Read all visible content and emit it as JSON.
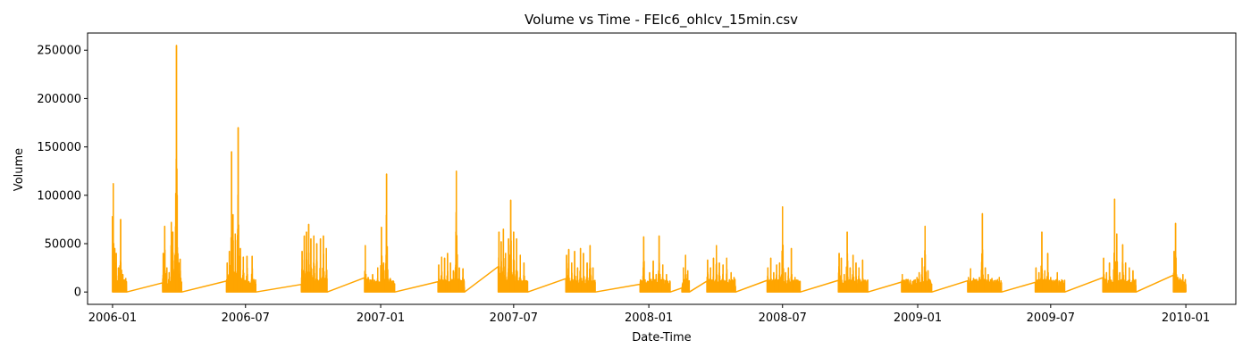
{
  "chart_data": {
    "type": "line",
    "title": "Volume vs Time - FEIc6_ohlcv_15min.csv",
    "xlabel": "Date-Time",
    "ylabel": "Volume",
    "series_color": "#FFA500",
    "grid": false,
    "legend": "none",
    "xlim": [
      "2005-11-28",
      "2010-03-10"
    ],
    "ylim": [
      -12750,
      267750
    ],
    "x_ticks": [
      "2006-01",
      "2006-07",
      "2007-01",
      "2007-07",
      "2008-01",
      "2008-07",
      "2009-01",
      "2009-07",
      "2010-01"
    ],
    "y_ticks": [
      0,
      50000,
      100000,
      150000,
      200000,
      250000
    ],
    "clusters": [
      {
        "start": "2006-01-01",
        "end": "2006-01-20",
        "peaks": [
          [
            "2006-01-01",
            78000
          ],
          [
            "2006-01-02",
            112000
          ],
          [
            "2006-01-04",
            45000
          ],
          [
            "2006-01-06",
            40000
          ],
          [
            "2006-01-09",
            25000
          ],
          [
            "2006-01-12",
            75000
          ],
          [
            "2006-01-15",
            18000
          ],
          [
            "2006-01-19",
            14000
          ]
        ]
      },
      {
        "start": "2006-03-10",
        "end": "2006-04-05",
        "peaks": [
          [
            "2006-03-11",
            40000
          ],
          [
            "2006-03-13",
            68000
          ],
          [
            "2006-03-16",
            25000
          ],
          [
            "2006-03-19",
            20000
          ],
          [
            "2006-03-22",
            72000
          ],
          [
            "2006-03-24",
            62000
          ],
          [
            "2006-03-27",
            38000
          ],
          [
            "2006-03-29",
            255000
          ],
          [
            "2006-03-30",
            100000
          ],
          [
            "2006-04-01",
            30000
          ],
          [
            "2006-04-03",
            34000
          ]
        ]
      },
      {
        "start": "2006-06-05",
        "end": "2006-07-15",
        "peaks": [
          [
            "2006-06-06",
            30000
          ],
          [
            "2006-06-09",
            42000
          ],
          [
            "2006-06-12",
            145000
          ],
          [
            "2006-06-14",
            80000
          ],
          [
            "2006-06-17",
            60000
          ],
          [
            "2006-06-21",
            170000
          ],
          [
            "2006-06-24",
            45000
          ],
          [
            "2006-06-28",
            36000
          ],
          [
            "2006-07-03",
            37000
          ],
          [
            "2006-07-10",
            37000
          ]
        ]
      },
      {
        "start": "2006-09-15",
        "end": "2006-10-20",
        "peaks": [
          [
            "2006-09-16",
            42000
          ],
          [
            "2006-09-19",
            58000
          ],
          [
            "2006-09-22",
            62000
          ],
          [
            "2006-09-25",
            70000
          ],
          [
            "2006-09-28",
            55000
          ],
          [
            "2006-10-02",
            58000
          ],
          [
            "2006-10-06",
            50000
          ],
          [
            "2006-10-11",
            55000
          ],
          [
            "2006-10-15",
            58000
          ],
          [
            "2006-10-19",
            45000
          ]
        ]
      },
      {
        "start": "2006-12-10",
        "end": "2007-01-20",
        "peaks": [
          [
            "2006-12-11",
            48000
          ],
          [
            "2006-12-15",
            15000
          ],
          [
            "2006-12-21",
            18000
          ],
          [
            "2006-12-28",
            25000
          ],
          [
            "2007-01-02",
            67000
          ],
          [
            "2007-01-05",
            30000
          ],
          [
            "2007-01-09",
            122000
          ],
          [
            "2007-01-14",
            14000
          ]
        ]
      },
      {
        "start": "2007-03-20",
        "end": "2007-04-25",
        "peaks": [
          [
            "2007-03-21",
            28000
          ],
          [
            "2007-03-25",
            36000
          ],
          [
            "2007-03-29",
            35000
          ],
          [
            "2007-04-02",
            40000
          ],
          [
            "2007-04-06",
            30000
          ],
          [
            "2007-04-10",
            22000
          ],
          [
            "2007-04-14",
            125000
          ],
          [
            "2007-04-18",
            25000
          ],
          [
            "2007-04-23",
            24000
          ]
        ]
      },
      {
        "start": "2007-06-10",
        "end": "2007-07-20",
        "peaks": [
          [
            "2007-06-11",
            62000
          ],
          [
            "2007-06-14",
            52000
          ],
          [
            "2007-06-17",
            65000
          ],
          [
            "2007-06-20",
            40000
          ],
          [
            "2007-06-24",
            55000
          ],
          [
            "2007-06-27",
            95000
          ],
          [
            "2007-07-01",
            62000
          ],
          [
            "2007-07-05",
            55000
          ],
          [
            "2007-07-10",
            38000
          ],
          [
            "2007-07-15",
            30000
          ]
        ]
      },
      {
        "start": "2007-09-10",
        "end": "2007-10-20",
        "peaks": [
          [
            "2007-09-11",
            38000
          ],
          [
            "2007-09-14",
            44000
          ],
          [
            "2007-09-18",
            30000
          ],
          [
            "2007-09-22",
            42000
          ],
          [
            "2007-09-26",
            25000
          ],
          [
            "2007-09-30",
            45000
          ],
          [
            "2007-10-04",
            40000
          ],
          [
            "2007-10-09",
            30000
          ],
          [
            "2007-10-13",
            48000
          ],
          [
            "2007-10-17",
            25000
          ]
        ]
      },
      {
        "start": "2007-12-20",
        "end": "2008-01-30",
        "peaks": [
          [
            "2007-12-21",
            10000
          ],
          [
            "2007-12-25",
            57000
          ],
          [
            "2007-12-29",
            8000
          ],
          [
            "2008-01-02",
            20000
          ],
          [
            "2008-01-07",
            32000
          ],
          [
            "2008-01-11",
            18000
          ],
          [
            "2008-01-15",
            58000
          ],
          [
            "2008-01-20",
            28000
          ],
          [
            "2008-01-25",
            18000
          ]
        ]
      },
      {
        "start": "2008-02-15",
        "end": "2008-02-25",
        "peaks": [
          [
            "2008-02-17",
            25000
          ],
          [
            "2008-02-20",
            38000
          ],
          [
            "2008-02-23",
            22000
          ]
        ]
      },
      {
        "start": "2008-03-20",
        "end": "2008-04-28",
        "peaks": [
          [
            "2008-03-21",
            33000
          ],
          [
            "2008-03-25",
            25000
          ],
          [
            "2008-03-29",
            35000
          ],
          [
            "2008-04-02",
            48000
          ],
          [
            "2008-04-06",
            30000
          ],
          [
            "2008-04-11",
            28000
          ],
          [
            "2008-04-16",
            35000
          ],
          [
            "2008-04-22",
            20000
          ],
          [
            "2008-04-26",
            15000
          ]
        ]
      },
      {
        "start": "2008-06-10",
        "end": "2008-07-25",
        "peaks": [
          [
            "2008-06-11",
            25000
          ],
          [
            "2008-06-15",
            35000
          ],
          [
            "2008-06-19",
            20000
          ],
          [
            "2008-06-23",
            28000
          ],
          [
            "2008-06-27",
            30000
          ],
          [
            "2008-07-01",
            88000
          ],
          [
            "2008-07-05",
            20000
          ],
          [
            "2008-07-09",
            25000
          ],
          [
            "2008-07-13",
            45000
          ],
          [
            "2008-07-18",
            15000
          ],
          [
            "2008-07-22",
            12000
          ]
        ]
      },
      {
        "start": "2008-09-15",
        "end": "2008-10-25",
        "peaks": [
          [
            "2008-09-16",
            40000
          ],
          [
            "2008-09-19",
            35000
          ],
          [
            "2008-09-23",
            18000
          ],
          [
            "2008-09-27",
            62000
          ],
          [
            "2008-10-01",
            25000
          ],
          [
            "2008-10-05",
            38000
          ],
          [
            "2008-10-09",
            30000
          ],
          [
            "2008-10-13",
            25000
          ],
          [
            "2008-10-18",
            33000
          ],
          [
            "2008-10-22",
            12000
          ]
        ]
      },
      {
        "start": "2008-12-10",
        "end": "2009-01-20",
        "peaks": [
          [
            "2008-12-11",
            18000
          ],
          [
            "2008-12-14",
            12000
          ],
          [
            "2008-12-18",
            8000
          ],
          [
            "2008-12-23",
            5000
          ],
          [
            "2008-12-27",
            10000
          ],
          [
            "2008-12-31",
            15000
          ],
          [
            "2009-01-03",
            20000
          ],
          [
            "2009-01-07",
            35000
          ],
          [
            "2009-01-11",
            68000
          ],
          [
            "2009-01-15",
            22000
          ],
          [
            "2009-01-18",
            12000
          ]
        ]
      },
      {
        "start": "2009-03-10",
        "end": "2009-04-25",
        "peaks": [
          [
            "2009-03-11",
            15000
          ],
          [
            "2009-03-14",
            24000
          ],
          [
            "2009-03-18",
            14000
          ],
          [
            "2009-03-22",
            12000
          ],
          [
            "2009-03-26",
            15000
          ],
          [
            "2009-03-30",
            81000
          ],
          [
            "2009-04-03",
            25000
          ],
          [
            "2009-04-07",
            18000
          ],
          [
            "2009-04-12",
            14000
          ],
          [
            "2009-04-17",
            12000
          ],
          [
            "2009-04-22",
            15000
          ]
        ]
      },
      {
        "start": "2009-06-10",
        "end": "2009-07-20",
        "peaks": [
          [
            "2009-06-11",
            25000
          ],
          [
            "2009-06-15",
            20000
          ],
          [
            "2009-06-19",
            62000
          ],
          [
            "2009-06-23",
            22000
          ],
          [
            "2009-06-27",
            40000
          ],
          [
            "2009-07-01",
            15000
          ],
          [
            "2009-07-05",
            12000
          ],
          [
            "2009-07-10",
            20000
          ],
          [
            "2009-07-15",
            8000
          ]
        ]
      },
      {
        "start": "2009-09-10",
        "end": "2009-10-25",
        "peaks": [
          [
            "2009-09-11",
            35000
          ],
          [
            "2009-09-15",
            20000
          ],
          [
            "2009-09-19",
            30000
          ],
          [
            "2009-09-23",
            10000
          ],
          [
            "2009-09-26",
            96000
          ],
          [
            "2009-09-29",
            60000
          ],
          [
            "2009-10-03",
            20000
          ],
          [
            "2009-10-07",
            49000
          ],
          [
            "2009-10-11",
            30000
          ],
          [
            "2009-10-16",
            25000
          ],
          [
            "2009-10-21",
            22000
          ]
        ]
      },
      {
        "start": "2009-12-15",
        "end": "2010-01-01",
        "peaks": [
          [
            "2009-12-16",
            42000
          ],
          [
            "2009-12-18",
            71000
          ],
          [
            "2009-12-21",
            15000
          ],
          [
            "2009-12-24",
            14000
          ],
          [
            "2009-12-28",
            18000
          ],
          [
            "2009-12-31",
            12000
          ]
        ]
      }
    ],
    "connectors": [
      [
        "2006-04-05",
        2000
      ],
      [
        "2006-06-05",
        0
      ],
      [
        "2006-07-15",
        0
      ],
      [
        "2006-09-15",
        0
      ],
      [
        "2006-10-20",
        1000
      ],
      [
        "2006-12-10",
        0
      ],
      [
        "2007-01-20",
        0
      ],
      [
        "2007-03-20",
        0
      ],
      [
        "2007-04-25",
        0
      ],
      [
        "2007-06-10",
        0
      ],
      [
        "2007-07-20",
        0
      ],
      [
        "2007-09-10",
        0
      ],
      [
        "2007-10-20",
        0
      ],
      [
        "2007-12-20",
        0
      ],
      [
        "2008-01-30",
        0
      ],
      [
        "2008-02-15",
        0
      ],
      [
        "2008-02-25",
        0
      ],
      [
        "2008-03-20",
        0
      ],
      [
        "2008-04-28",
        0
      ],
      [
        "2008-06-10",
        0
      ],
      [
        "2008-07-25",
        0
      ],
      [
        "2008-09-15",
        0
      ],
      [
        "2008-10-25",
        0
      ],
      [
        "2008-12-10",
        0
      ],
      [
        "2009-01-20",
        1000
      ],
      [
        "2009-03-10",
        0
      ],
      [
        "2009-04-25",
        1000
      ],
      [
        "2009-06-10",
        0
      ],
      [
        "2009-07-20",
        3000
      ],
      [
        "2009-09-10",
        0
      ],
      [
        "2009-10-25",
        0
      ],
      [
        "2009-12-15",
        0
      ]
    ]
  }
}
